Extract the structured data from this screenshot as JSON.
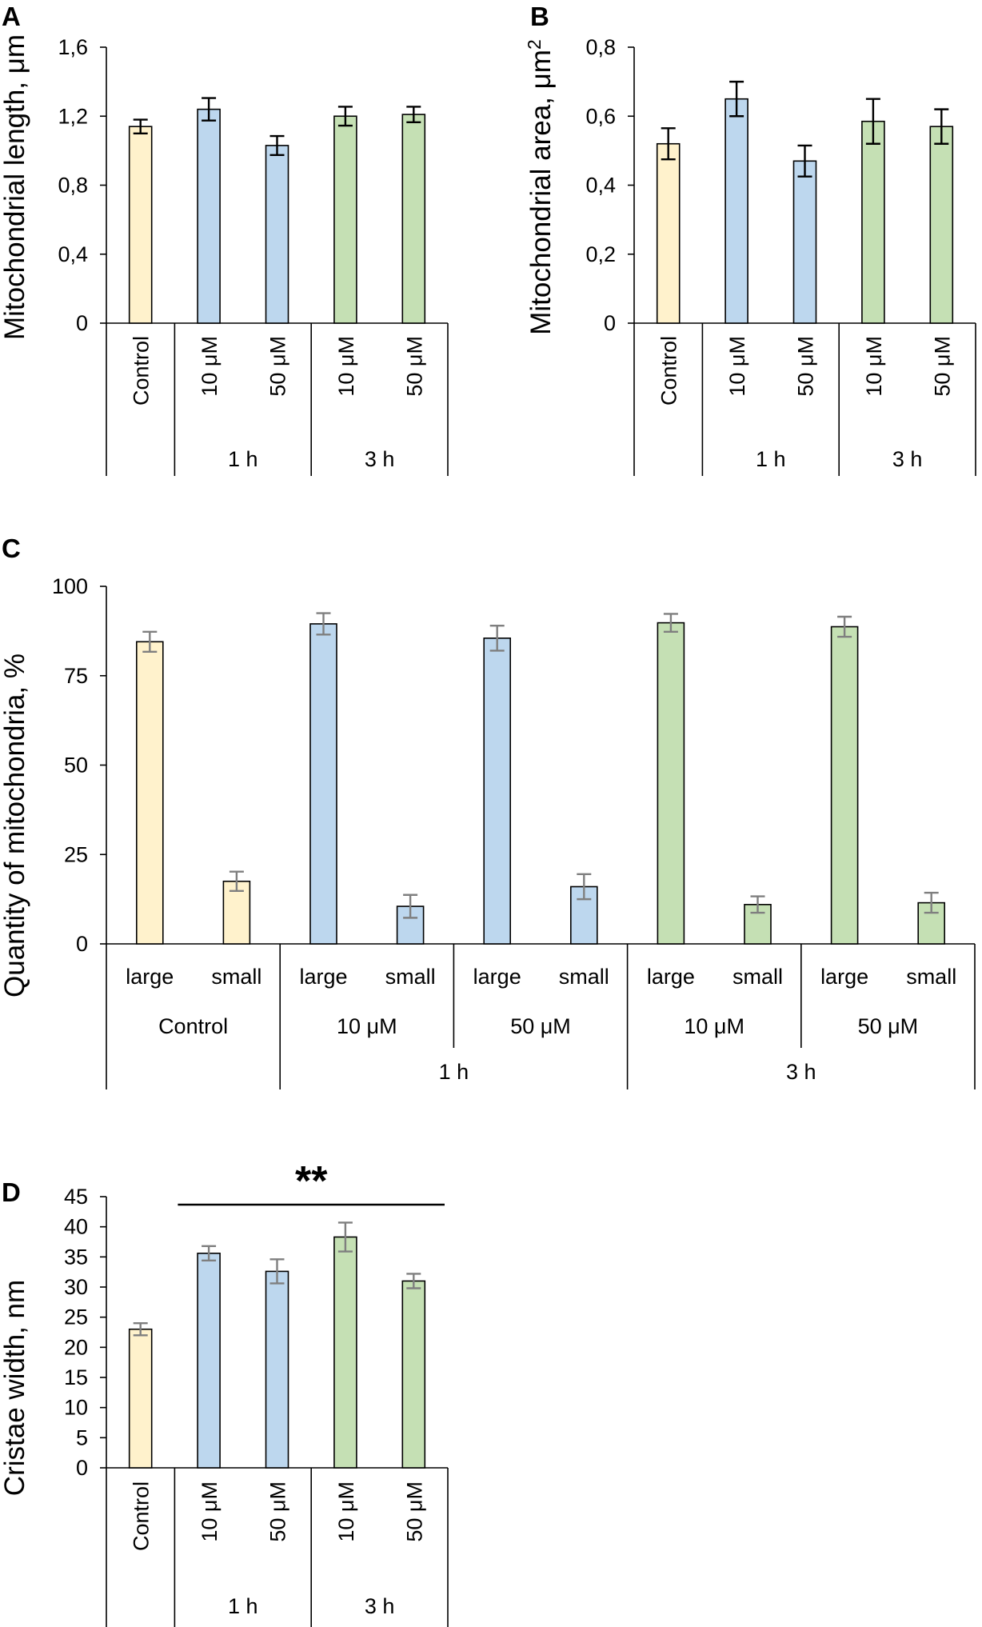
{
  "colors": {
    "control": "#FFF2CC",
    "h1": "#BDD7EE",
    "h3": "#C5E0B4",
    "bar_stroke": "#000000",
    "err_dark": "#000000",
    "err_gray": "#7F7F7F",
    "axis": "#000000"
  },
  "chart_data": [
    {
      "panel": "A",
      "type": "bar",
      "ylabel": "Mitochondrial length, μm",
      "ylim": [
        0,
        1.6
      ],
      "yticks": [
        "0",
        "0,4",
        "0,8",
        "1,2",
        "1,6"
      ],
      "categories": [
        "Control",
        "10 μM",
        "50 μM",
        "10 μM",
        "50 μM"
      ],
      "category_colors": [
        "control",
        "h1",
        "h1",
        "h3",
        "h3"
      ],
      "groups": [
        {
          "label": "",
          "span": [
            0,
            0
          ]
        },
        {
          "label": "1 h",
          "span": [
            1,
            2
          ]
        },
        {
          "label": "3 h",
          "span": [
            3,
            4
          ]
        }
      ],
      "values": [
        1.14,
        1.24,
        1.03,
        1.2,
        1.21
      ],
      "errors": [
        0.04,
        0.065,
        0.055,
        0.055,
        0.045
      ],
      "error_color": "err_dark"
    },
    {
      "panel": "B",
      "type": "bar",
      "ylabel": "Mitochondrial area, μm",
      "ylabel_sup": "2",
      "ylim": [
        0,
        0.8
      ],
      "yticks": [
        "0",
        "0,2",
        "0,4",
        "0,6",
        "0,8"
      ],
      "categories": [
        "Control",
        "10 μM",
        "50 μM",
        "10 μM",
        "50 μM"
      ],
      "category_colors": [
        "control",
        "h1",
        "h1",
        "h3",
        "h3"
      ],
      "groups": [
        {
          "label": "",
          "span": [
            0,
            0
          ]
        },
        {
          "label": "1 h",
          "span": [
            1,
            2
          ]
        },
        {
          "label": "3 h",
          "span": [
            3,
            4
          ]
        }
      ],
      "values": [
        0.52,
        0.65,
        0.47,
        0.585,
        0.57
      ],
      "errors": [
        0.045,
        0.05,
        0.045,
        0.065,
        0.05
      ],
      "error_color": "err_dark"
    },
    {
      "panel": "C",
      "type": "bar",
      "ylabel": "Quantity of mitochondria, %",
      "ylim": [
        0,
        100
      ],
      "yticks": [
        "0",
        "25",
        "50",
        "75",
        "100"
      ],
      "categories": [
        "large",
        "small",
        "large",
        "small",
        "large",
        "small",
        "large",
        "small",
        "large",
        "small"
      ],
      "category_colors": [
        "control",
        "control",
        "h1",
        "h1",
        "h1",
        "h1",
        "h3",
        "h3",
        "h3",
        "h3"
      ],
      "subgroups": [
        "Control",
        "10 μM",
        "50 μM",
        "10 μM",
        "50 μM"
      ],
      "groups": [
        {
          "label": "",
          "span": [
            0,
            1
          ]
        },
        {
          "label": "1 h",
          "span": [
            2,
            5
          ]
        },
        {
          "label": "3 h",
          "span": [
            6,
            9
          ]
        }
      ],
      "values": [
        84.5,
        17.5,
        89.5,
        10.5,
        85.5,
        16,
        89.8,
        11,
        88.7,
        11.5
      ],
      "errors": [
        2.8,
        2.7,
        3,
        3.2,
        3.5,
        3.5,
        2.5,
        2.3,
        2.8,
        2.8
      ],
      "error_color": "err_gray"
    },
    {
      "panel": "D",
      "type": "bar",
      "ylabel": "Cristae width, nm",
      "ylim": [
        0,
        45
      ],
      "yticks": [
        "0",
        "5",
        "10",
        "15",
        "20",
        "25",
        "30",
        "35",
        "40",
        "45"
      ],
      "categories": [
        "Control",
        "10 μM",
        "50 μM",
        "10 μM",
        "50 μM"
      ],
      "category_colors": [
        "control",
        "h1",
        "h1",
        "h3",
        "h3"
      ],
      "groups": [
        {
          "label": "",
          "span": [
            0,
            0
          ]
        },
        {
          "label": "1 h",
          "span": [
            1,
            2
          ]
        },
        {
          "label": "3 h",
          "span": [
            3,
            4
          ]
        }
      ],
      "values": [
        23,
        35.6,
        32.6,
        38.3,
        31
      ],
      "errors": [
        1,
        1.2,
        2,
        2.4,
        1.2
      ],
      "error_color": "err_gray",
      "annotation": "**"
    }
  ]
}
